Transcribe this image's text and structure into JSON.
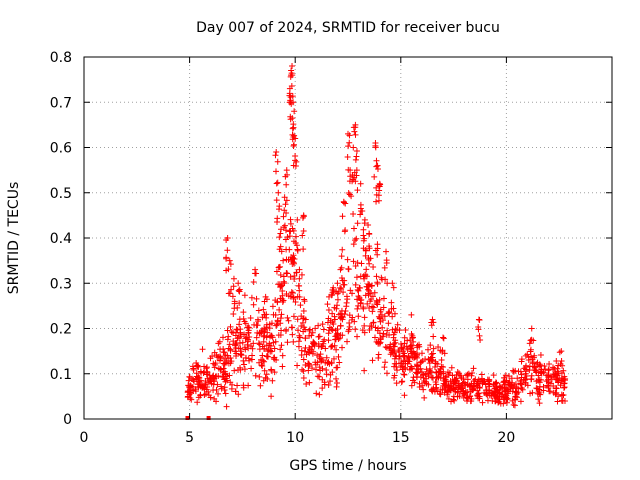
{
  "chart_data": {
    "type": "scatter",
    "title": "Day 007 of 2024, SRMTID for receiver bucu",
    "xlabel": "GPS time / hours",
    "ylabel": "SRMTID / TECUs",
    "xlim": [
      0,
      25
    ],
    "ylim": [
      0,
      0.8
    ],
    "xticks": [
      0,
      5,
      10,
      15,
      20
    ],
    "xtick_labels": [
      "0",
      "5",
      "10",
      "15",
      "20"
    ],
    "yticks": [
      0,
      0.1,
      0.2,
      0.3,
      0.4,
      0.5,
      0.6,
      0.7,
      0.8
    ],
    "ytick_labels": [
      "0",
      "0.1",
      "0.2",
      "0.3",
      "0.4",
      "0.5",
      "0.6",
      "0.7",
      "0.8"
    ],
    "grid": true,
    "marker": "plus",
    "series_color": "#ff0000",
    "envelope": [
      [
        4.9,
        0.06,
        0.02
      ],
      [
        5.5,
        0.09,
        0.03
      ],
      [
        6.0,
        0.09,
        0.03
      ],
      [
        6.5,
        0.11,
        0.04
      ],
      [
        7.0,
        0.14,
        0.05
      ],
      [
        7.5,
        0.17,
        0.06
      ],
      [
        8.0,
        0.18,
        0.06
      ],
      [
        8.5,
        0.16,
        0.05
      ],
      [
        9.0,
        0.18,
        0.07
      ],
      [
        9.3,
        0.25,
        0.09
      ],
      [
        9.6,
        0.3,
        0.1
      ],
      [
        9.8,
        0.36,
        0.12
      ],
      [
        10.0,
        0.26,
        0.08
      ],
      [
        10.3,
        0.19,
        0.06
      ],
      [
        10.6,
        0.15,
        0.05
      ],
      [
        11.0,
        0.13,
        0.04
      ],
      [
        11.5,
        0.15,
        0.05
      ],
      [
        12.0,
        0.19,
        0.06
      ],
      [
        12.4,
        0.25,
        0.08
      ],
      [
        12.8,
        0.3,
        0.1
      ],
      [
        13.2,
        0.29,
        0.09
      ],
      [
        13.7,
        0.26,
        0.09
      ],
      [
        14.1,
        0.22,
        0.07
      ],
      [
        14.5,
        0.17,
        0.05
      ],
      [
        15.0,
        0.14,
        0.04
      ],
      [
        15.5,
        0.13,
        0.04
      ],
      [
        16.0,
        0.12,
        0.04
      ],
      [
        16.5,
        0.1,
        0.03
      ],
      [
        17.0,
        0.09,
        0.03
      ],
      [
        17.5,
        0.075,
        0.02
      ],
      [
        18.0,
        0.07,
        0.02
      ],
      [
        18.5,
        0.07,
        0.02
      ],
      [
        19.0,
        0.065,
        0.02
      ],
      [
        19.5,
        0.06,
        0.02
      ],
      [
        20.0,
        0.06,
        0.02
      ],
      [
        20.5,
        0.075,
        0.025
      ],
      [
        21.0,
        0.11,
        0.035
      ],
      [
        21.5,
        0.09,
        0.03
      ],
      [
        22.0,
        0.085,
        0.025
      ],
      [
        22.8,
        0.08,
        0.025
      ]
    ],
    "spikes": [
      [
        6.8,
        0.4
      ],
      [
        6.9,
        0.35
      ],
      [
        7.1,
        0.31
      ],
      [
        7.3,
        0.3
      ],
      [
        8.1,
        0.33
      ],
      [
        8.6,
        0.27
      ],
      [
        9.1,
        0.59
      ],
      [
        9.2,
        0.5
      ],
      [
        9.3,
        0.41
      ],
      [
        9.5,
        0.49
      ],
      [
        9.6,
        0.55
      ],
      [
        9.75,
        0.73
      ],
      [
        9.8,
        0.76
      ],
      [
        9.85,
        0.78
      ],
      [
        9.9,
        0.7
      ],
      [
        9.95,
        0.68
      ],
      [
        10.0,
        0.62
      ],
      [
        10.1,
        0.44
      ],
      [
        10.2,
        0.33
      ],
      [
        10.4,
        0.45
      ],
      [
        11.6,
        0.27
      ],
      [
        11.8,
        0.29
      ],
      [
        12.0,
        0.3
      ],
      [
        12.2,
        0.36
      ],
      [
        12.3,
        0.48
      ],
      [
        12.5,
        0.63
      ],
      [
        12.6,
        0.55
      ],
      [
        12.75,
        0.6
      ],
      [
        12.85,
        0.65
      ],
      [
        12.9,
        0.58
      ],
      [
        13.1,
        0.52
      ],
      [
        13.3,
        0.44
      ],
      [
        13.5,
        0.41
      ],
      [
        13.8,
        0.61
      ],
      [
        13.9,
        0.56
      ],
      [
        14.0,
        0.52
      ],
      [
        14.3,
        0.37
      ],
      [
        14.6,
        0.3
      ],
      [
        15.5,
        0.23
      ],
      [
        16.5,
        0.22
      ],
      [
        17.0,
        0.18
      ],
      [
        18.7,
        0.22
      ],
      [
        21.2,
        0.2
      ],
      [
        22.6,
        0.15
      ]
    ],
    "zero_points": [
      [
        4.9,
        0.0
      ],
      [
        5.9,
        0.0
      ]
    ]
  }
}
